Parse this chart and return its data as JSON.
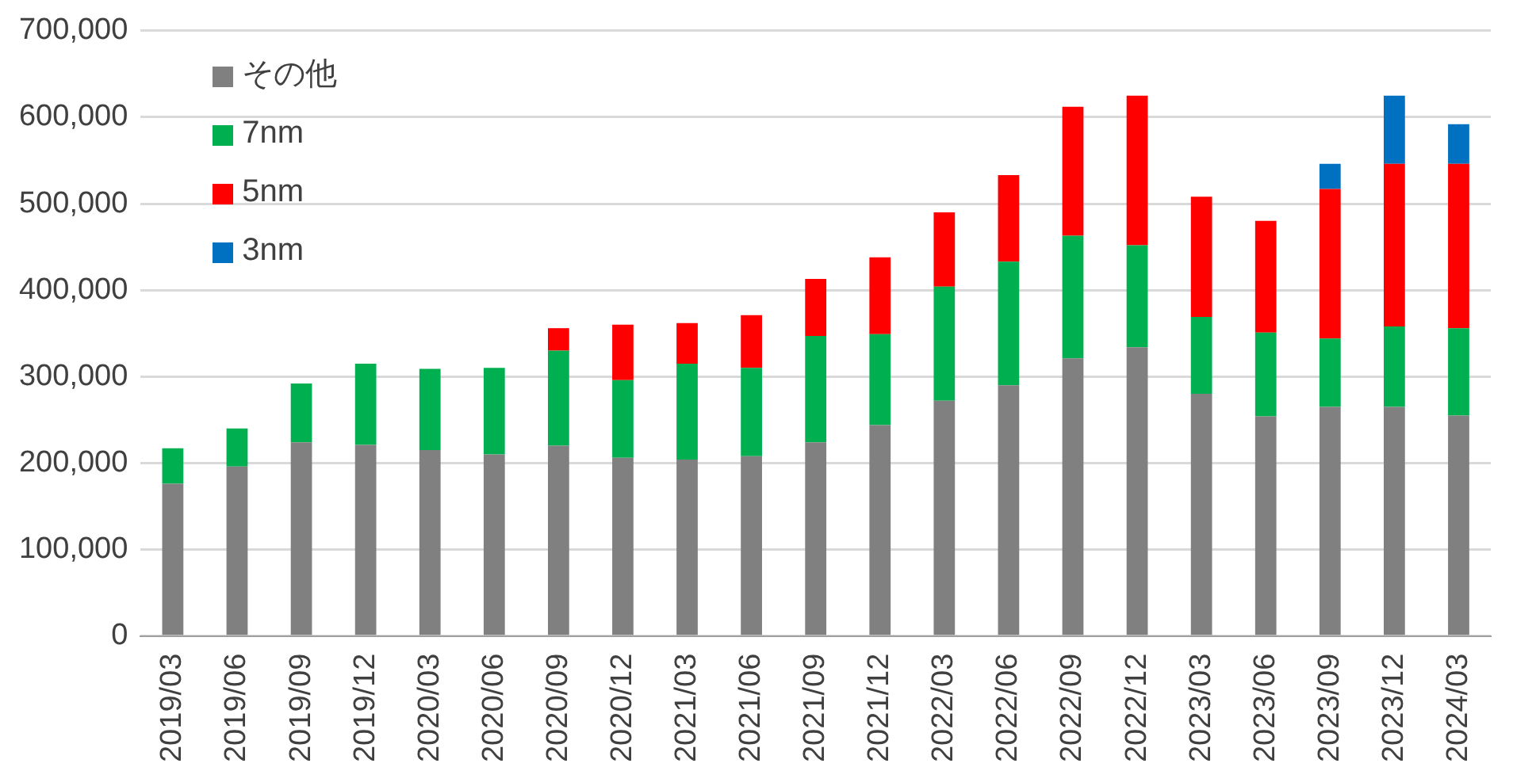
{
  "chart_data": {
    "type": "bar",
    "stacked": true,
    "categories": [
      "2019/03",
      "2019/06",
      "2019/09",
      "2019/12",
      "2020/03",
      "2020/06",
      "2020/09",
      "2020/12",
      "2021/03",
      "2021/06",
      "2021/09",
      "2021/12",
      "2022/03",
      "2022/06",
      "2022/09",
      "2022/12",
      "2023/03",
      "2023/06",
      "2023/09",
      "2023/12",
      "2024/03"
    ],
    "series": [
      {
        "name": "その他",
        "color": "#808080",
        "values": [
          176000,
          196000,
          224000,
          221000,
          215000,
          210000,
          220000,
          206000,
          204000,
          208000,
          224000,
          244000,
          272000,
          290000,
          321000,
          334000,
          280000,
          254000,
          265000,
          265000,
          255000
        ]
      },
      {
        "name": "7nm",
        "color": "#00b050",
        "values": [
          41000,
          44000,
          68000,
          94000,
          94000,
          100000,
          110000,
          90000,
          111000,
          102000,
          123000,
          105000,
          132000,
          143000,
          142000,
          118000,
          89000,
          97000,
          79000,
          93000,
          101000
        ]
      },
      {
        "name": "5nm",
        "color": "#ff0000",
        "values": [
          null,
          null,
          null,
          null,
          null,
          null,
          26000,
          64000,
          47000,
          61000,
          66000,
          89000,
          86000,
          100000,
          149000,
          173000,
          139000,
          129000,
          173000,
          188000,
          190000
        ]
      },
      {
        "name": "3nm",
        "color": "#0070c0",
        "values": [
          null,
          null,
          null,
          null,
          null,
          null,
          null,
          null,
          null,
          null,
          null,
          null,
          null,
          null,
          null,
          null,
          null,
          null,
          29000,
          79000,
          46000
        ]
      }
    ],
    "ylim": [
      0,
      700000
    ],
    "yticks": [
      0,
      {
        "value": 100000,
        "label": "100,000"
      },
      {
        "value": 200000,
        "label": "200,000"
      },
      {
        "value": 300000,
        "label": "300,000"
      },
      {
        "value": 400000,
        "label": "400,000"
      },
      {
        "value": 500000,
        "label": "500,000"
      },
      {
        "value": 600000,
        "label": "600,000"
      },
      {
        "value": 700000,
        "label": "700,000"
      }
    ],
    "grid": "y",
    "legend": "top left"
  }
}
